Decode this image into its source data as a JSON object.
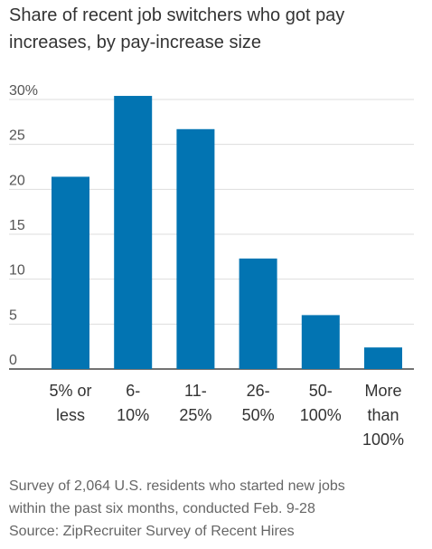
{
  "chart_data": {
    "type": "bar",
    "title": "Share of recent job switchers who got pay increases, by pay-increase size",
    "categories": [
      [
        "5% or",
        "less"
      ],
      [
        "6-",
        "10%"
      ],
      [
        "11-",
        "25%"
      ],
      [
        "26-",
        "50%"
      ],
      [
        "50-",
        "100%"
      ],
      [
        "More",
        "than",
        "100%"
      ]
    ],
    "values": [
      21.4,
      30.4,
      26.7,
      12.3,
      6.0,
      2.4
    ],
    "yticks": [
      "30%",
      "25",
      "20",
      "15",
      "10",
      "5",
      "0"
    ],
    "ylim": [
      0,
      30
    ],
    "grid": true,
    "bar_color": "#0274b2"
  },
  "footnote": {
    "line1": "Survey of 2,064 U.S. residents who started new jobs",
    "line2": "within the past six months, conducted Feb. 9-28",
    "source": "Source: ZipRecruiter Survey of Recent Hires"
  }
}
